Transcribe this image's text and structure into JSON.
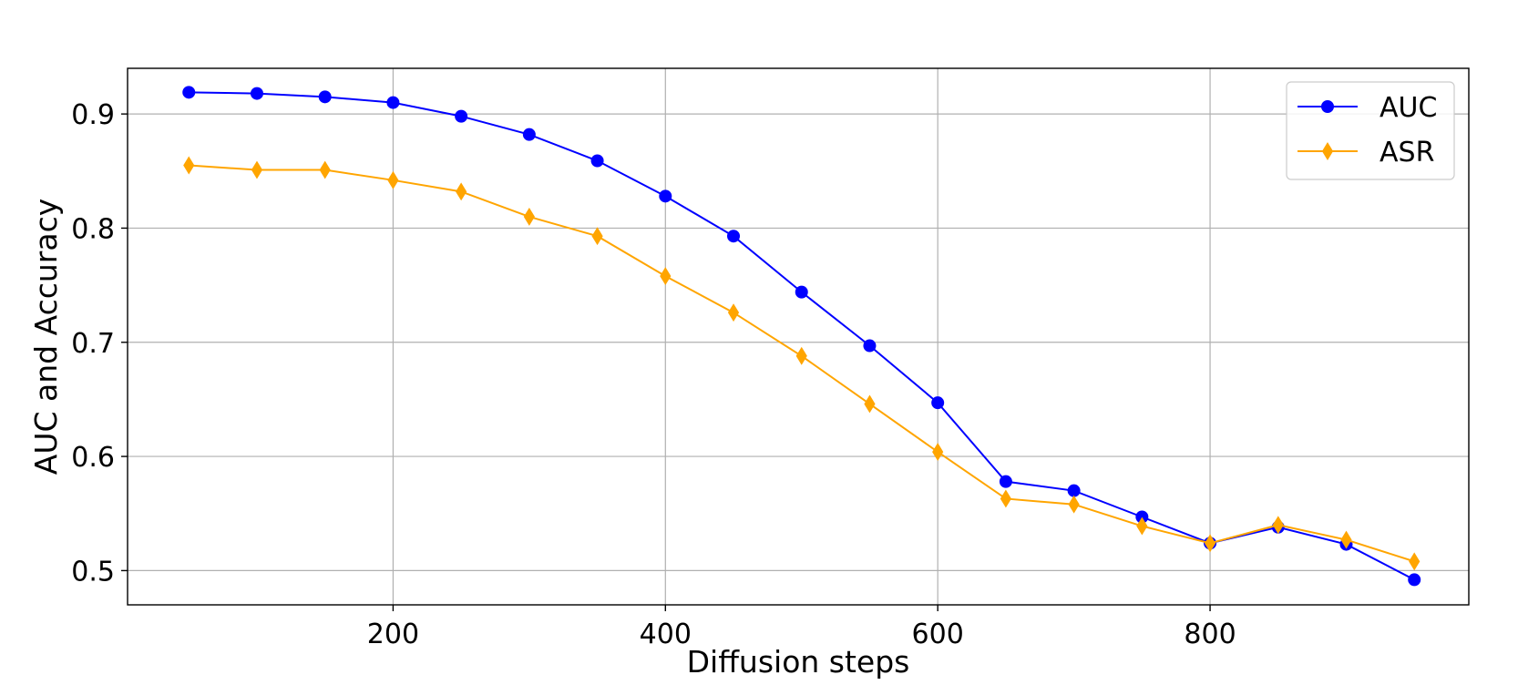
{
  "chart_data": {
    "type": "line",
    "title": "",
    "xlabel": "Diffusion steps",
    "ylabel": "AUC and Accuracy",
    "xlim": [
      5,
      990
    ],
    "ylim": [
      0.47,
      0.94
    ],
    "xticks": [
      200,
      400,
      600,
      800
    ],
    "yticks": [
      0.5,
      0.6,
      0.7,
      0.8,
      0.9
    ],
    "xtick_labels": [
      "200",
      "400",
      "600",
      "800"
    ],
    "ytick_labels": [
      "0.5",
      "0.6",
      "0.7",
      "0.8",
      "0.9"
    ],
    "grid": true,
    "legend_position": "top-right",
    "x": [
      50,
      100,
      150,
      200,
      250,
      300,
      350,
      400,
      450,
      500,
      550,
      600,
      650,
      700,
      750,
      800,
      850,
      900,
      950
    ],
    "series": [
      {
        "name": "AUC",
        "color": "#0000ff",
        "marker": "circle",
        "values": [
          0.919,
          0.918,
          0.915,
          0.91,
          0.898,
          0.882,
          0.859,
          0.828,
          0.793,
          0.744,
          0.697,
          0.647,
          0.578,
          0.57,
          0.547,
          0.524,
          0.538,
          0.523,
          0.492
        ]
      },
      {
        "name": "ASR",
        "color": "#ffa500",
        "marker": "diamond",
        "values": [
          0.855,
          0.851,
          0.851,
          0.842,
          0.832,
          0.81,
          0.793,
          0.758,
          0.726,
          0.688,
          0.646,
          0.604,
          0.563,
          0.558,
          0.539,
          0.524,
          0.54,
          0.527,
          0.508
        ]
      }
    ]
  }
}
